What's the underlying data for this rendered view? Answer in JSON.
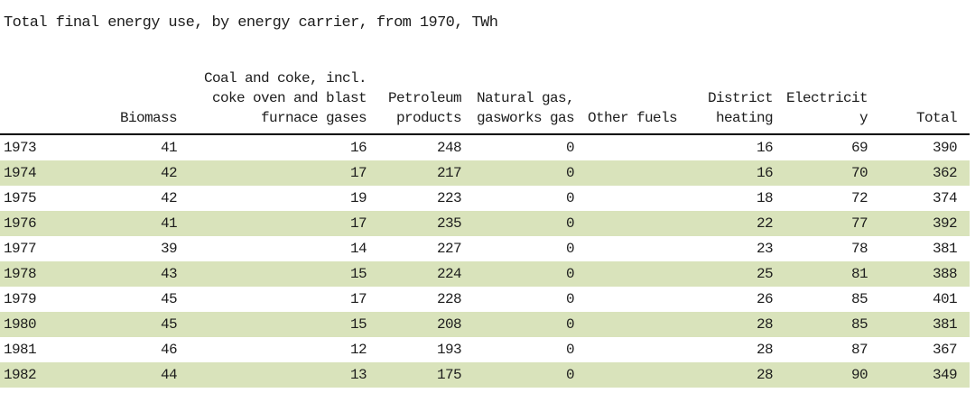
{
  "chart_data": {
    "type": "table",
    "title": "Total final energy use, by energy carrier, from 1970, TWh",
    "columns": [
      {
        "key": "year",
        "label": "",
        "align": "left"
      },
      {
        "key": "biomass",
        "label": "Biomass",
        "align": "right"
      },
      {
        "key": "coal",
        "label": "Coal and coke, incl.\ncoke oven and blast\nfurnace gases",
        "align": "right"
      },
      {
        "key": "petroleum",
        "label": "Petroleum\nproducts",
        "align": "right"
      },
      {
        "key": "natural_gas",
        "label": "Natural gas,\ngasworks gas",
        "align": "right"
      },
      {
        "key": "other_fuels",
        "label": "Other fuels",
        "align": "right"
      },
      {
        "key": "district",
        "label": "District\nheating",
        "align": "right"
      },
      {
        "key": "electricity",
        "label": "Electricit\ny",
        "align": "right"
      },
      {
        "key": "total",
        "label": "Total",
        "align": "right"
      }
    ],
    "rows": [
      {
        "year": "1973",
        "biomass": "41",
        "coal": "16",
        "petroleum": "248",
        "natural_gas": "0",
        "other_fuels": "",
        "district": "16",
        "electricity": "69",
        "total": "390"
      },
      {
        "year": "1974",
        "biomass": "42",
        "coal": "17",
        "petroleum": "217",
        "natural_gas": "0",
        "other_fuels": "",
        "district": "16",
        "electricity": "70",
        "total": "362"
      },
      {
        "year": "1975",
        "biomass": "42",
        "coal": "19",
        "petroleum": "223",
        "natural_gas": "0",
        "other_fuels": "",
        "district": "18",
        "electricity": "72",
        "total": "374"
      },
      {
        "year": "1976",
        "biomass": "41",
        "coal": "17",
        "petroleum": "235",
        "natural_gas": "0",
        "other_fuels": "",
        "district": "22",
        "electricity": "77",
        "total": "392"
      },
      {
        "year": "1977",
        "biomass": "39",
        "coal": "14",
        "petroleum": "227",
        "natural_gas": "0",
        "other_fuels": "",
        "district": "23",
        "electricity": "78",
        "total": "381"
      },
      {
        "year": "1978",
        "biomass": "43",
        "coal": "15",
        "petroleum": "224",
        "natural_gas": "0",
        "other_fuels": "",
        "district": "25",
        "electricity": "81",
        "total": "388"
      },
      {
        "year": "1979",
        "biomass": "45",
        "coal": "17",
        "petroleum": "228",
        "natural_gas": "0",
        "other_fuels": "",
        "district": "26",
        "electricity": "85",
        "total": "401"
      },
      {
        "year": "1980",
        "biomass": "45",
        "coal": "15",
        "petroleum": "208",
        "natural_gas": "0",
        "other_fuels": "",
        "district": "28",
        "electricity": "85",
        "total": "381"
      },
      {
        "year": "1981",
        "biomass": "46",
        "coal": "12",
        "petroleum": "193",
        "natural_gas": "0",
        "other_fuels": "",
        "district": "28",
        "electricity": "87",
        "total": "367"
      },
      {
        "year": "1982",
        "biomass": "44",
        "coal": "13",
        "petroleum": "175",
        "natural_gas": "0",
        "other_fuels": "",
        "district": "28",
        "electricity": "90",
        "total": "349"
      }
    ],
    "colors": {
      "stripe": "#d9e3bb",
      "text": "#1d1d1d",
      "header_rule": "#000000",
      "background": "#ffffff"
    }
  }
}
